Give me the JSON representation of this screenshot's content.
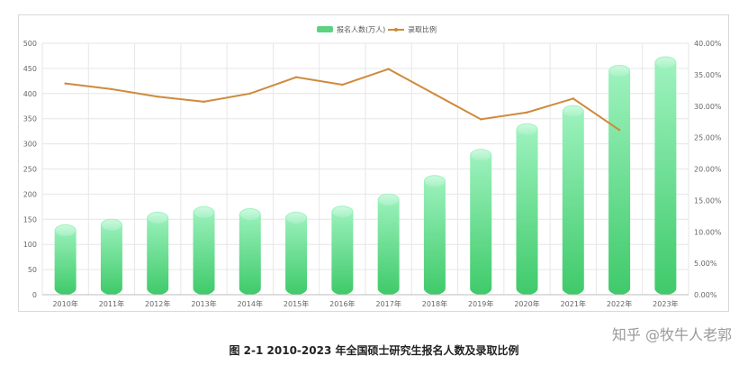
{
  "caption": "图 2-1 2010-2023 年全国硕士研究生报名人数及录取比例",
  "watermark": "知乎 @牧牛人老郭",
  "colors": {
    "bar_top": "#9ff3c0",
    "bar_bottom": "#3fca6a",
    "line": "#cf8a3c",
    "grid": "#e6e6e6"
  },
  "chart_data": {
    "type": "bar",
    "categories": [
      "2010年",
      "2011年",
      "2012年",
      "2013年",
      "2014年",
      "2015年",
      "2016年",
      "2017年",
      "2018年",
      "2019年",
      "2020年",
      "2021年",
      "2022年",
      "2023年"
    ],
    "series": [
      {
        "name": "报名人数(万人)",
        "type": "bar",
        "axis": "left",
        "values": [
          140,
          151,
          165,
          176,
          172,
          165,
          177,
          201,
          238,
          290,
          341,
          377,
          457,
          474
        ]
      },
      {
        "name": "录取比例",
        "type": "line",
        "axis": "right",
        "values": [
          33.6,
          32.7,
          31.5,
          30.7,
          32.0,
          34.6,
          33.4,
          35.9,
          31.9,
          27.9,
          29.0,
          31.2,
          26.2,
          null
        ]
      }
    ],
    "y_left": {
      "min": 0,
      "max": 500,
      "ticks": [
        "0",
        "50",
        "100",
        "150",
        "200",
        "250",
        "300",
        "350",
        "400",
        "450",
        "500"
      ]
    },
    "y_right": {
      "min": 0,
      "max": 40,
      "ticks": [
        "0.00%",
        "5.00%",
        "10.00%",
        "15.00%",
        "20.00%",
        "25.00%",
        "30.00%",
        "35.00%",
        "40.00%"
      ]
    },
    "grid": true,
    "legend_position": "top-center"
  }
}
